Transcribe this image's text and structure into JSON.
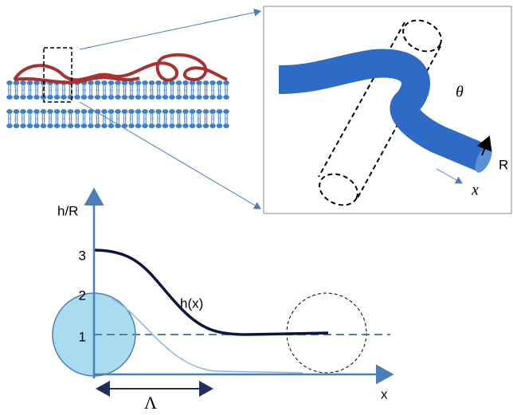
{
  "inset": {
    "angle_label": "θ",
    "radius_label": "R",
    "axis_label": "x"
  },
  "plot": {
    "y_axis_label": "h/R",
    "x_axis_label": "x",
    "ticks": [
      3,
      2,
      1
    ],
    "curve_label": "h(x)",
    "length_label": "Λ"
  }
}
